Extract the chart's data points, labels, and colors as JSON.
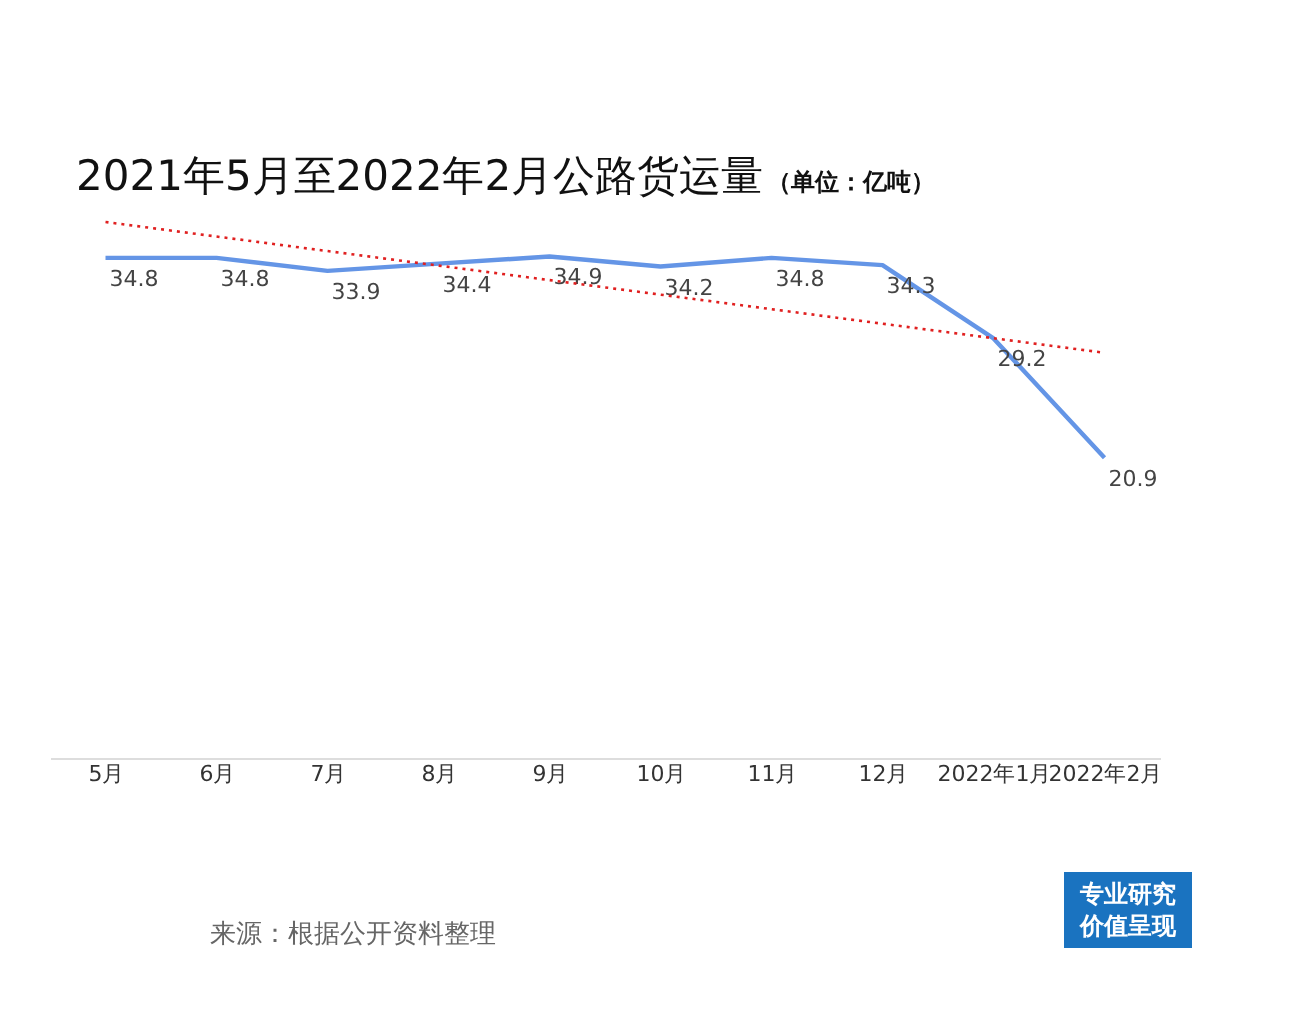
{
  "chart_data": {
    "type": "line",
    "title": "2021年5月至2022年2月公路货运量",
    "subtitle": "（单位：亿吨）",
    "categories": [
      "5月",
      "6月",
      "7月",
      "8月",
      "9月",
      "10月",
      "11月",
      "12月",
      "2022年1月",
      "2022年2月"
    ],
    "series": [
      {
        "color": "#6495e6",
        "values": [
          34.8,
          34.8,
          33.9,
          34.4,
          34.9,
          34.2,
          34.8,
          34.3,
          29.2,
          20.9
        ],
        "data_labels": true
      },
      {
        "type": "line",
        "color": "#e02020",
        "line_style": "dotted",
        "x": [
          "5月",
          "2022年2月"
        ],
        "values": [
          37.3,
          28.2
        ]
      }
    ],
    "tick_labels": "x",
    "marker": "none",
    "grid": false,
    "annotations": [
      "来源：根据公开资料整理",
      "专业研究",
      "价值呈现"
    ]
  }
}
